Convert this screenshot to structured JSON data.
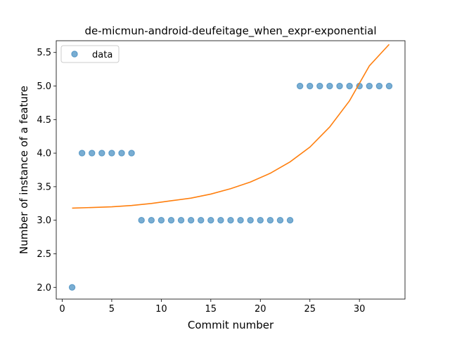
{
  "chart_data": {
    "type": "scatter",
    "title": "de-micmun-android-deufeitage_when_expr-exponential",
    "xlabel": "Commit number",
    "ylabel": "Number of instance of a feature",
    "xlim": [
      -0.6,
      34.6
    ],
    "ylim": [
      1.825,
      5.675
    ],
    "xticks": [
      0,
      5,
      10,
      15,
      20,
      25,
      30
    ],
    "xtick_labels": [
      "0",
      "5",
      "10",
      "15",
      "20",
      "25",
      "30"
    ],
    "yticks": [
      2.0,
      2.5,
      3.0,
      3.5,
      4.0,
      4.5,
      5.0,
      5.5
    ],
    "ytick_labels": [
      "2.0",
      "2.5",
      "3.0",
      "3.5",
      "4.0",
      "4.5",
      "5.0",
      "5.5"
    ],
    "grid": false,
    "legend": {
      "position": "top-left",
      "entries": [
        "data"
      ]
    },
    "series": [
      {
        "name": "data",
        "kind": "scatter",
        "color": "#1f77b4",
        "x": [
          1,
          2,
          3,
          4,
          5,
          6,
          7,
          8,
          9,
          10,
          11,
          12,
          13,
          14,
          15,
          16,
          17,
          18,
          19,
          20,
          21,
          22,
          23,
          24,
          25,
          26,
          27,
          28,
          29,
          30,
          31,
          32,
          33
        ],
        "y": [
          2,
          4,
          4,
          4,
          4,
          4,
          4,
          3,
          3,
          3,
          3,
          3,
          3,
          3,
          3,
          3,
          3,
          3,
          3,
          3,
          3,
          3,
          3,
          5,
          5,
          5,
          5,
          5,
          5,
          5,
          5,
          5,
          5
        ]
      },
      {
        "kind": "line",
        "color": "#ff7f0e",
        "x": [
          1,
          3,
          5,
          7,
          9,
          11,
          13,
          15,
          17,
          19,
          21,
          23,
          25,
          27,
          29,
          31,
          33
        ],
        "y": [
          3.18,
          3.19,
          3.2,
          3.22,
          3.25,
          3.29,
          3.33,
          3.39,
          3.47,
          3.57,
          3.7,
          3.87,
          4.09,
          4.39,
          4.78,
          5.3,
          5.62
        ]
      }
    ]
  }
}
